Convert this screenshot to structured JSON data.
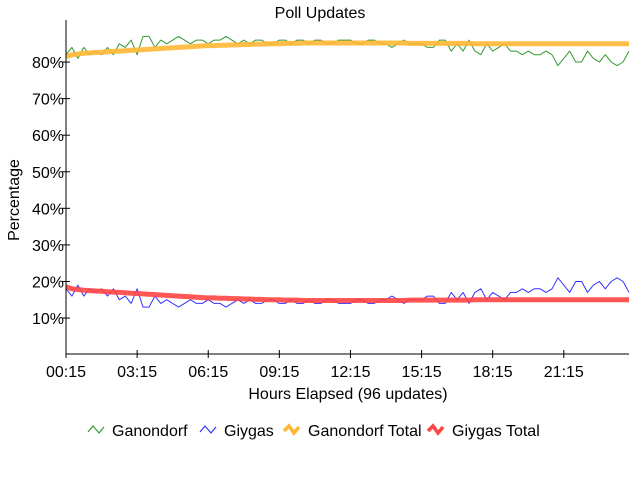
{
  "chart_data": {
    "type": "line",
    "title": "Poll Updates",
    "xlabel": "Hours Elapsed (96 updates)",
    "ylabel": "Percentage",
    "ylim": [
      0,
      88
    ],
    "yticks": [
      10,
      20,
      30,
      40,
      50,
      60,
      70,
      80
    ],
    "ytick_labels": [
      "10%",
      "20%",
      "30%",
      "40%",
      "50%",
      "60%",
      "70%",
      "80%"
    ],
    "xtick_labels": [
      "00:15",
      "03:15",
      "06:15",
      "09:15",
      "12:15",
      "15:15",
      "18:15",
      "21:15"
    ],
    "xtick_every": 12,
    "n_points": 96,
    "legend_position": "bottom",
    "grid": false,
    "series": [
      {
        "name": "Ganondorf",
        "color": "#339933",
        "width": 1,
        "values": [
          82,
          84,
          81,
          84,
          82,
          83,
          82,
          84,
          82,
          85,
          84,
          86,
          82,
          87,
          87,
          84,
          86,
          85,
          86,
          87,
          86,
          85,
          86,
          86,
          85,
          86,
          86,
          87,
          86,
          85,
          86,
          85,
          86,
          86,
          85,
          85,
          86,
          86,
          85,
          86,
          86,
          85,
          86,
          86,
          85,
          85,
          86,
          86,
          86,
          85,
          85,
          86,
          86,
          85,
          85,
          84,
          85,
          86,
          85,
          85,
          85,
          84,
          84,
          86,
          86,
          83,
          85,
          83,
          86,
          83,
          82,
          85,
          83,
          84,
          85,
          83,
          83,
          82,
          83,
          82,
          82,
          83,
          82,
          79,
          81,
          83,
          80,
          80,
          83,
          81,
          80,
          82,
          80,
          79,
          80,
          83
        ]
      },
      {
        "name": "Giygas",
        "color": "#3333ff",
        "width": 1,
        "values": [
          18,
          16,
          19,
          16,
          18,
          17,
          18,
          16,
          18,
          15,
          16,
          14,
          18,
          13,
          13,
          16,
          14,
          15,
          14,
          13,
          14,
          15,
          14,
          14,
          15,
          14,
          14,
          13,
          14,
          15,
          14,
          15,
          14,
          14,
          15,
          15,
          14,
          14,
          15,
          14,
          14,
          15,
          14,
          14,
          15,
          15,
          14,
          14,
          14,
          15,
          15,
          14,
          14,
          15,
          15,
          16,
          15,
          14,
          15,
          15,
          15,
          16,
          16,
          14,
          14,
          17,
          15,
          17,
          14,
          17,
          18,
          15,
          17,
          16,
          15,
          17,
          17,
          18,
          17,
          18,
          18,
          17,
          18,
          21,
          19,
          17,
          20,
          20,
          17,
          19,
          20,
          18,
          20,
          21,
          20,
          17
        ]
      },
      {
        "name": "Ganondorf Total",
        "color": "#ffb733",
        "width": 5,
        "values": [
          81.5,
          82,
          82.2,
          82.4,
          82.5,
          82.6,
          82.7,
          82.8,
          82.9,
          83,
          83.1,
          83.2,
          83.3,
          83.4,
          83.5,
          83.6,
          83.7,
          83.8,
          83.9,
          84,
          84.1,
          84.2,
          84.3,
          84.4,
          84.5,
          84.5,
          84.6,
          84.6,
          84.7,
          84.7,
          84.8,
          84.8,
          84.9,
          84.9,
          85,
          85,
          85,
          85.1,
          85.1,
          85.1,
          85.2,
          85.2,
          85.2,
          85.2,
          85.2,
          85.2,
          85.2,
          85.2,
          85.2,
          85.2,
          85.2,
          85.2,
          85.2,
          85.2,
          85.2,
          85.2,
          85.2,
          85.2,
          85.1,
          85.1,
          85.1,
          85.1,
          85.1,
          85.1,
          85.1,
          85.1,
          85.1,
          85.1,
          85.1,
          85,
          85,
          85,
          85,
          85,
          85,
          85,
          85,
          85,
          85,
          85,
          85,
          85,
          85,
          85,
          85,
          85,
          85,
          85,
          85,
          85,
          85,
          85,
          85,
          85,
          85,
          85
        ]
      },
      {
        "name": "Giygas Total",
        "color": "#ff4444",
        "width": 5,
        "values": [
          18.5,
          18,
          17.8,
          17.6,
          17.5,
          17.4,
          17.3,
          17.2,
          17.1,
          17,
          16.9,
          16.8,
          16.7,
          16.6,
          16.5,
          16.4,
          16.3,
          16.2,
          16.1,
          16,
          15.9,
          15.8,
          15.7,
          15.6,
          15.5,
          15.5,
          15.4,
          15.4,
          15.3,
          15.3,
          15.2,
          15.2,
          15.1,
          15.1,
          15,
          15,
          15,
          14.9,
          14.9,
          14.9,
          14.8,
          14.8,
          14.8,
          14.8,
          14.8,
          14.8,
          14.8,
          14.8,
          14.8,
          14.8,
          14.8,
          14.8,
          14.8,
          14.8,
          14.8,
          14.8,
          14.8,
          14.8,
          14.9,
          14.9,
          14.9,
          14.9,
          14.9,
          14.9,
          14.9,
          14.9,
          14.9,
          14.9,
          14.9,
          15,
          15,
          15,
          15,
          15,
          15,
          15,
          15,
          15,
          15,
          15,
          15,
          15,
          15,
          15,
          15,
          15,
          15,
          15,
          15,
          15,
          15,
          15,
          15,
          15,
          15,
          15
        ]
      }
    ]
  }
}
